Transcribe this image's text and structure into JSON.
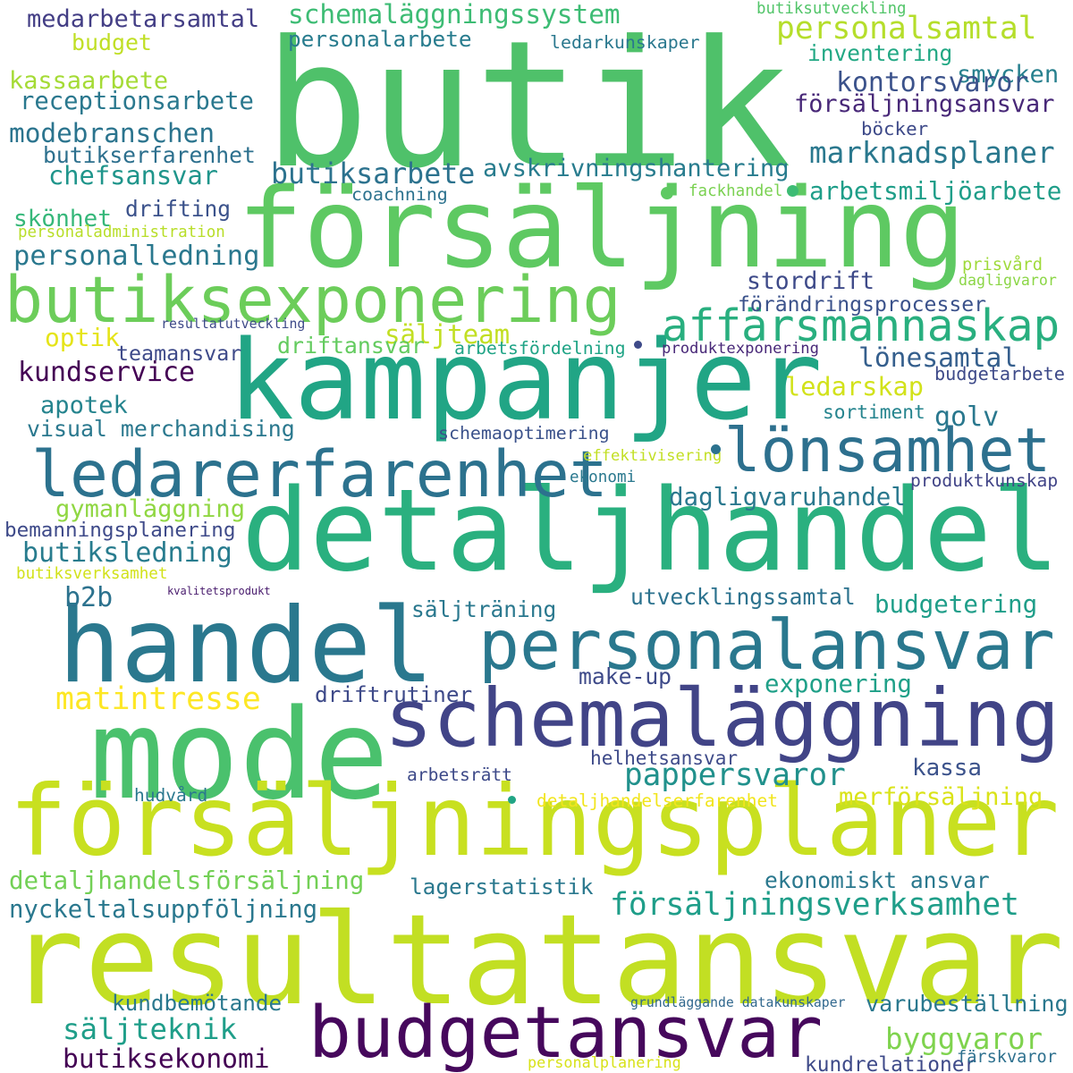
{
  "words": [
    {
      "text": "butik",
      "color": "#4fc16a"
    },
    {
      "text": "försäljning",
      "color": "#5ec962"
    },
    {
      "text": "kampanjer",
      "color": "#21a585"
    },
    {
      "text": "detaljhandel",
      "color": "#2ab07f"
    },
    {
      "text": "handel",
      "color": "#2a788e"
    },
    {
      "text": "mode",
      "color": "#4ac16d"
    },
    {
      "text": "schemaläggning",
      "color": "#414487"
    },
    {
      "text": "försäljningsplaner",
      "color": "#c8e020"
    },
    {
      "text": "resultatansvar",
      "color": "#c2df23"
    },
    {
      "text": "butiksexponering",
      "color": "#6ccd5a"
    },
    {
      "text": "ledarerfarenhet",
      "color": "#2c728e"
    },
    {
      "text": "personalansvar",
      "color": "#2a788e"
    },
    {
      "text": "lönsamhet",
      "color": "#2d708e"
    },
    {
      "text": "affärsmannaskap",
      "color": "#29af7f"
    },
    {
      "text": "budgetansvar",
      "color": "#46085c"
    },
    {
      "text": "medarbetarsamtal",
      "color": "#433e85"
    },
    {
      "text": "schemaläggningssystem",
      "color": "#3dbc74"
    },
    {
      "text": "personalarbete",
      "color": "#287c8e"
    },
    {
      "text": "budget",
      "color": "#c0df25"
    },
    {
      "text": "butiksutveckling",
      "color": "#52c569"
    },
    {
      "text": "personalsamtal",
      "color": "#b5de2b"
    },
    {
      "text": "ledarkunskaper",
      "color": "#2a788e"
    },
    {
      "text": "inventering",
      "color": "#22a884"
    },
    {
      "text": "smycken",
      "color": "#27808e"
    },
    {
      "text": "kassaarbete",
      "color": "#a5db36"
    },
    {
      "text": "receptionsarbete",
      "color": "#2a788e"
    },
    {
      "text": "kontorsvaror",
      "color": "#3b528b"
    },
    {
      "text": "försäljningsansvar",
      "color": "#482878"
    },
    {
      "text": "modebranschen",
      "color": "#2b748e"
    },
    {
      "text": "böcker",
      "color": "#3e4a89"
    },
    {
      "text": "butikserfarenhet",
      "color": "#2d708e"
    },
    {
      "text": "marknadsplaner",
      "color": "#2a788e"
    },
    {
      "text": "chefsansvar",
      "color": "#1f958b"
    },
    {
      "text": "butiksarbete",
      "color": "#2c728e"
    },
    {
      "text": "avskrivningshantering",
      "color": "#287c8e"
    },
    {
      "text": "coachning",
      "color": "#2c728e"
    },
    {
      "text": "fackhandel",
      "color": "#7ad151"
    },
    {
      "text": "arbetsmiljöarbete",
      "color": "#1f9e89"
    },
    {
      "text": "drifting",
      "color": "#3b528b"
    },
    {
      "text": "skönhet",
      "color": "#35b779"
    },
    {
      "text": "personaladministration",
      "color": "#b8de29"
    },
    {
      "text": "personalledning",
      "color": "#2a788e"
    },
    {
      "text": "stordrift",
      "color": "#3e4a89"
    },
    {
      "text": "prisvård",
      "color": "#9fda3a"
    },
    {
      "text": "dagligvaror",
      "color": "#8bd646"
    },
    {
      "text": "förändringsprocesser",
      "color": "#3b528b"
    },
    {
      "text": "resultatutveckling",
      "color": "#3e4a89"
    },
    {
      "text": "säljteam",
      "color": "#c2df23"
    },
    {
      "text": "optik",
      "color": "#e5e419"
    },
    {
      "text": "teamansvar",
      "color": "#3e4a89"
    },
    {
      "text": "driftansvar",
      "color": "#63cb5f"
    },
    {
      "text": "arbetsfördelning",
      "color": "#20a486"
    },
    {
      "text": "produktexponering",
      "color": "#482878"
    },
    {
      "text": "lönesamtal",
      "color": "#355f8d"
    },
    {
      "text": "kundservice",
      "color": "#440154"
    },
    {
      "text": "budgetarbete",
      "color": "#3e4a89"
    },
    {
      "text": "ledarskap",
      "color": "#d2e21b"
    },
    {
      "text": "apotek",
      "color": "#25848e"
    },
    {
      "text": "sortiment",
      "color": "#25848e"
    },
    {
      "text": "golv",
      "color": "#2a788e"
    },
    {
      "text": "visual merchandising",
      "color": "#2a788e"
    },
    {
      "text": "schemaoptimering",
      "color": "#3b528b"
    },
    {
      "text": "effektivisering",
      "color": "#c2df23"
    },
    {
      "text": "ekonomi",
      "color": "#2a788e"
    },
    {
      "text": "produktkunskap",
      "color": "#414487"
    },
    {
      "text": "dagligvaruhandel",
      "color": "#2a788e"
    },
    {
      "text": "gymanläggning",
      "color": "#90d743"
    },
    {
      "text": "bemanningsplanering",
      "color": "#3e4a89"
    },
    {
      "text": "butiksledning",
      "color": "#287c8e"
    },
    {
      "text": "butiksverksamhet",
      "color": "#d2e21b"
    },
    {
      "text": "kvalitetsprodukt",
      "color": "#481b6d"
    },
    {
      "text": "b2b",
      "color": "#2c728e"
    },
    {
      "text": "säljträning",
      "color": "#2a788e"
    },
    {
      "text": "utvecklingssamtal",
      "color": "#2c728e"
    },
    {
      "text": "budgetering",
      "color": "#1f9e89"
    },
    {
      "text": "matintresse",
      "color": "#fde725"
    },
    {
      "text": "make-up",
      "color": "#3e4a89"
    },
    {
      "text": "driftrutiner",
      "color": "#3e4a89"
    },
    {
      "text": "exponering",
      "color": "#1fa088"
    },
    {
      "text": "pappersvaror",
      "color": "#21918c"
    },
    {
      "text": "helhetsansvar",
      "color": "#3e4a89"
    },
    {
      "text": "arbetsrätt",
      "color": "#3e4a89"
    },
    {
      "text": "kassa",
      "color": "#3b528b"
    },
    {
      "text": "hudvård",
      "color": "#2a788e"
    },
    {
      "text": "detaljhandelserfarenhet",
      "color": "#f1e51d"
    },
    {
      "text": "merförsäljning",
      "color": "#dae319"
    },
    {
      "text": "detaljhandelsförsäljning",
      "color": "#73d056"
    },
    {
      "text": "lagerstatistik",
      "color": "#2a788e"
    },
    {
      "text": "ekonomiskt ansvar",
      "color": "#2a788e"
    },
    {
      "text": "nyckeltalsuppföljning",
      "color": "#2a788e"
    },
    {
      "text": "försäljningsverksamhet",
      "color": "#1f9e89"
    },
    {
      "text": "kundbemötande",
      "color": "#2a788e"
    },
    {
      "text": "grundläggande datakunskaper",
      "color": "#31688e"
    },
    {
      "text": "varubeställning",
      "color": "#2a788e"
    },
    {
      "text": "säljteknik",
      "color": "#1f9e89"
    },
    {
      "text": "byggvaror",
      "color": "#7fd34e"
    },
    {
      "text": "butiksekonomi",
      "color": "#440154"
    },
    {
      "text": "personalplanering",
      "color": "#d8e219"
    },
    {
      "text": "kundrelationer",
      "color": "#3e4a89"
    },
    {
      "text": "färskvaror",
      "color": "#2d708e"
    }
  ],
  "dots": [
    {
      "name": "dot-1",
      "color": "#5ec962"
    },
    {
      "name": "dot-2",
      "color": "#3dbc74"
    },
    {
      "name": "dot-3",
      "color": "#2c728e"
    },
    {
      "name": "dot-4",
      "color": "#3e4a89"
    },
    {
      "name": "dot-5",
      "color": "#21a585"
    }
  ]
}
